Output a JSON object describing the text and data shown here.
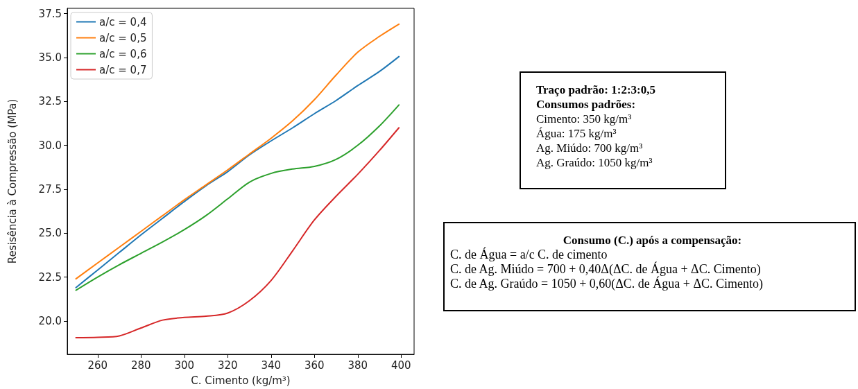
{
  "chart_data": {
    "type": "line",
    "xlabel": "C. Cimento (kg/m³)",
    "ylabel": "Resisência à Compressão (MPa)",
    "x": [
      250,
      260,
      270,
      280,
      290,
      300,
      310,
      320,
      330,
      340,
      350,
      360,
      370,
      380,
      390,
      399
    ],
    "series": [
      {
        "name": "a/c = 0,4",
        "color": "#1f77b4",
        "values": [
          21.9,
          22.9,
          23.9,
          24.9,
          25.85,
          26.8,
          27.7,
          28.5,
          29.45,
          30.25,
          31.0,
          31.8,
          32.55,
          33.4,
          34.2,
          35.05
        ]
      },
      {
        "name": "a/c = 0,5",
        "color": "#ff7f0e",
        "values": [
          22.4,
          23.3,
          24.2,
          25.1,
          26.0,
          26.9,
          27.75,
          28.6,
          29.5,
          30.4,
          31.4,
          32.6,
          34.0,
          35.3,
          36.2,
          36.9
        ]
      },
      {
        "name": "a/c = 0,6",
        "color": "#2ca02c",
        "values": [
          21.75,
          22.5,
          23.2,
          23.85,
          24.5,
          25.2,
          26.0,
          26.95,
          27.9,
          28.4,
          28.65,
          28.8,
          29.2,
          30.0,
          31.1,
          32.3
        ]
      },
      {
        "name": "a/c = 0,7",
        "color": "#d62728",
        "values": [
          19.05,
          19.07,
          19.15,
          19.6,
          20.05,
          20.2,
          20.27,
          20.45,
          21.15,
          22.3,
          24.0,
          25.75,
          27.1,
          28.35,
          29.7,
          31.0
        ]
      }
    ],
    "xlim": [
      246,
      406
    ],
    "xticks": [
      260,
      280,
      300,
      320,
      340,
      360,
      380,
      400
    ],
    "ylim": [
      18.1,
      37.8
    ],
    "yticks": [
      {
        "value": 20,
        "label": "20.0"
      },
      {
        "value": 22.5,
        "label": "22.5"
      },
      {
        "value": 25,
        "label": "25.0"
      },
      {
        "value": 27.5,
        "label": "27.5"
      },
      {
        "value": 30,
        "label": "30.0"
      },
      {
        "value": 32.5,
        "label": "32.5"
      },
      {
        "value": 35,
        "label": "35.0"
      },
      {
        "value": 37.5,
        "label": "37.5"
      }
    ],
    "legend": "top left",
    "grid": false,
    "marker": "none",
    "line_style": "solid",
    "annotations": [
      "Traço padrão: 1:2:3:0,5\nConsumos padrões:\nCimento: 350 kg/m³\nÁgua: 175 kg/m³\nAg. Miúdo: 700 kg/m³\nAg. Graúdo: 1050 kg/m³",
      "Consumo (C.) após a compensação:\nC. de Água = a/c C. de cimento\nC. de Ag. Miúdo = 700 +  0,40Δ(ΔC. de Água + ΔC. Cimento)\nC. de Ag. Graúdo = 1050 +  0,60(ΔC. de Água + ΔC. Cimento)"
    ]
  }
}
